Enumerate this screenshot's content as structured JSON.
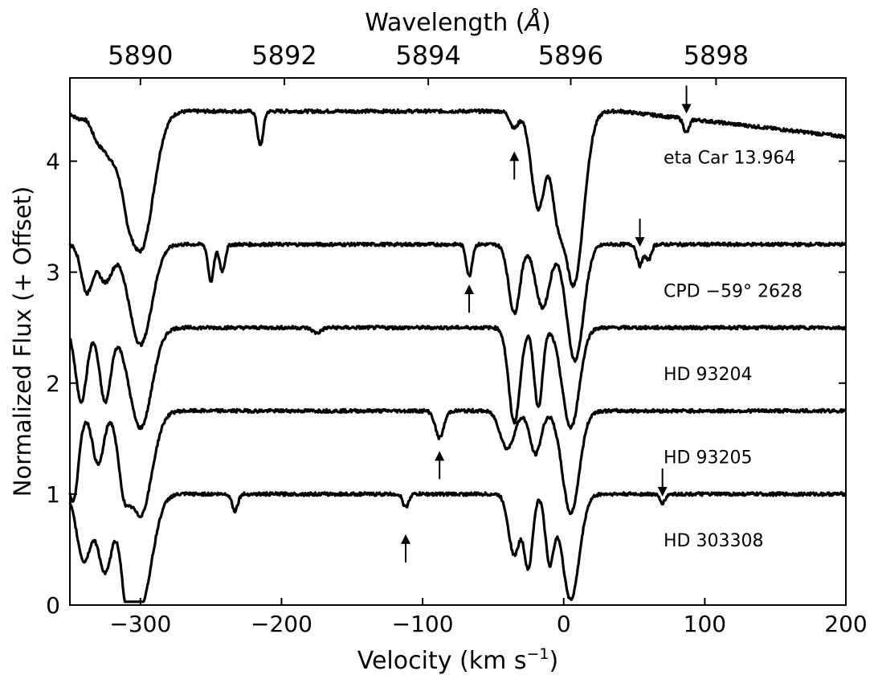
{
  "chart_data": {
    "type": "line",
    "title": "",
    "xlabel": "Velocity (km s",
    "xlabel_sup": "−1",
    "xlabel_suffix": ")",
    "ylabel": "Normalized Flux (+ Offset)",
    "top_axis_label": "Wavelength (",
    "top_axis_label_unit": "Å",
    "top_axis_label_suffix": ")",
    "xlim": [
      -350,
      200
    ],
    "ylim": [
      0,
      4.75
    ],
    "xticks": [
      -300,
      -200,
      -100,
      0,
      100,
      200
    ],
    "xtick_labels": [
      "−300",
      "−200",
      "−100",
      "0",
      "100",
      "200"
    ],
    "yticks": [
      0,
      1,
      2,
      3,
      4
    ],
    "ytick_labels": [
      "0",
      "1",
      "2",
      "3",
      "4"
    ],
    "top_ticks": [
      {
        "label": "5890",
        "velocity": -300
      },
      {
        "label": "5892",
        "velocity": -198
      },
      {
        "label": "5894",
        "velocity": -96
      },
      {
        "label": "5896",
        "velocity": 5
      },
      {
        "label": "5898",
        "velocity": 108
      }
    ],
    "grid": false,
    "series": [
      {
        "name": "eta Car 13.964",
        "offset": 3.2,
        "continuum": 4.45,
        "tail_continuum": 4.22,
        "features": [
          {
            "v": -344,
            "depth": 0.05,
            "w": 4
          },
          {
            "v": -330,
            "depth": 0.2,
            "w": 5
          },
          {
            "v": -320,
            "depth": 0.25,
            "w": 5
          },
          {
            "v": -310,
            "depth": 0.2,
            "w": 4
          },
          {
            "v": -300,
            "depth": 1.0,
            "w": 9
          },
          {
            "v": -215,
            "depth": 0.25,
            "w": 2
          },
          {
            "v": -35,
            "depth": 0.12,
            "w": 3
          },
          {
            "v": -18,
            "depth": 0.7,
            "w": 5
          },
          {
            "v": -5,
            "depth": 0.5,
            "w": 4
          },
          {
            "v": 7,
            "depth": 1.25,
            "w": 7
          },
          {
            "v": 87,
            "depth": 0.1,
            "w": 2
          }
        ],
        "arrows": [
          {
            "v": -35,
            "dir": "up"
          },
          {
            "v": 87,
            "dir": "down"
          }
        ]
      },
      {
        "name": "CPD −59° 2628",
        "offset": 2.3,
        "continuum": 3.25,
        "tail_continuum": 3.25,
        "features": [
          {
            "v": -338,
            "depth": 0.45,
            "w": 4
          },
          {
            "v": -325,
            "depth": 0.35,
            "w": 5
          },
          {
            "v": -300,
            "depth": 0.95,
            "w": 8
          },
          {
            "v": -250,
            "depth": 0.35,
            "w": 2
          },
          {
            "v": -242,
            "depth": 0.25,
            "w": 2
          },
          {
            "v": -67,
            "depth": 0.3,
            "w": 2
          },
          {
            "v": -35,
            "depth": 0.65,
            "w": 4
          },
          {
            "v": -15,
            "depth": 0.6,
            "w": 5
          },
          {
            "v": 8,
            "depth": 1.1,
            "w": 6
          },
          {
            "v": 54,
            "depth": 0.2,
            "w": 2
          },
          {
            "v": 60,
            "depth": 0.15,
            "w": 2
          }
        ],
        "arrows": [
          {
            "v": -67,
            "dir": "up"
          },
          {
            "v": 54,
            "dir": "down"
          }
        ]
      },
      {
        "name": "HD 93204",
        "offset": 1.55,
        "continuum": 2.5,
        "tail_continuum": 2.5,
        "features": [
          {
            "v": -342,
            "depth": 0.7,
            "w": 4
          },
          {
            "v": -325,
            "depth": 0.7,
            "w": 4
          },
          {
            "v": -300,
            "depth": 0.95,
            "w": 8
          },
          {
            "v": -175,
            "depth": 0.05,
            "w": 3
          },
          {
            "v": -35,
            "depth": 0.9,
            "w": 4
          },
          {
            "v": -18,
            "depth": 0.75,
            "w": 3
          },
          {
            "v": 5,
            "depth": 0.95,
            "w": 6
          }
        ],
        "arrows": []
      },
      {
        "name": "HD 93205",
        "offset": 0.78,
        "continuum": 1.75,
        "tail_continuum": 1.75,
        "features": [
          {
            "v": -348,
            "depth": 0.85,
            "w": 4
          },
          {
            "v": -330,
            "depth": 0.5,
            "w": 4
          },
          {
            "v": -312,
            "depth": 0.5,
            "w": 4
          },
          {
            "v": -300,
            "depth": 0.97,
            "w": 8
          },
          {
            "v": -88,
            "depth": 0.25,
            "w": 3
          },
          {
            "v": -40,
            "depth": 0.35,
            "w": 5
          },
          {
            "v": -20,
            "depth": 0.4,
            "w": 4
          },
          {
            "v": 5,
            "depth": 0.95,
            "w": 6
          }
        ],
        "arrows": [
          {
            "v": -88,
            "dir": "up"
          }
        ]
      },
      {
        "name": "HD 303308",
        "offset": 0.0,
        "continuum": 1.0,
        "tail_continuum": 1.0,
        "features": [
          {
            "v": -340,
            "depth": 0.6,
            "w": 5
          },
          {
            "v": -325,
            "depth": 0.7,
            "w": 5
          },
          {
            "v": -310,
            "depth": 0.6,
            "w": 4
          },
          {
            "v": -300,
            "depth": 1.0,
            "w": 8
          },
          {
            "v": -233,
            "depth": 0.15,
            "w": 2
          },
          {
            "v": -112,
            "depth": 0.12,
            "w": 2
          },
          {
            "v": -35,
            "depth": 0.55,
            "w": 4
          },
          {
            "v": -25,
            "depth": 0.65,
            "w": 3
          },
          {
            "v": -10,
            "depth": 0.6,
            "w": 3
          },
          {
            "v": 5,
            "depth": 0.95,
            "w": 6
          },
          {
            "v": 70,
            "depth": 0.08,
            "w": 2
          }
        ],
        "arrows": [
          {
            "v": -112,
            "dir": "up"
          },
          {
            "v": 70,
            "dir": "down"
          }
        ]
      }
    ]
  }
}
